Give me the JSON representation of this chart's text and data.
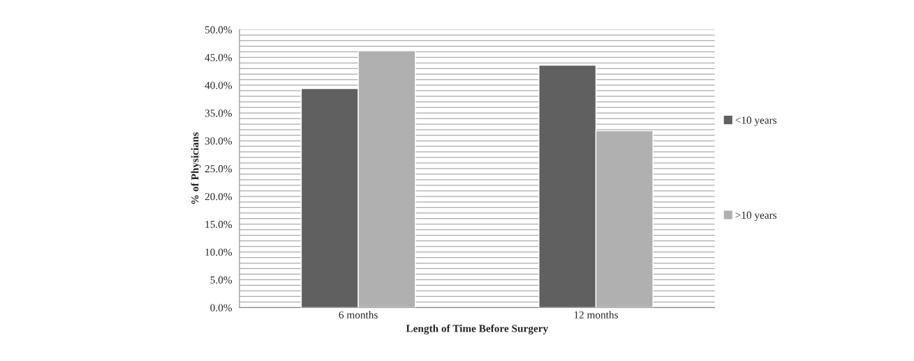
{
  "chart_data": {
    "type": "bar",
    "xlabel": "Length of Time Before Surgery",
    "ylabel": "% of Physicians",
    "categories": [
      "6 months",
      "12 months"
    ],
    "series": [
      {
        "name": "<10 years",
        "color": "#606060",
        "values": [
          39.4,
          43.6
        ]
      },
      {
        "name": ">10 years",
        "color": "#b0b0b0",
        "values": [
          46.2,
          31.8
        ]
      }
    ],
    "ylim": [
      0,
      50
    ],
    "yticks": [
      {
        "value": 0,
        "label": "0.0%"
      },
      {
        "value": 1,
        "label": null
      },
      {
        "value": 2,
        "label": null
      },
      {
        "value": 3,
        "label": null
      },
      {
        "value": 4,
        "label": null
      },
      {
        "value": 5,
        "label": "5.0%"
      },
      {
        "value": 6,
        "label": null
      },
      {
        "value": 7,
        "label": null
      },
      {
        "value": 8,
        "label": null
      },
      {
        "value": 9,
        "label": null
      },
      {
        "value": 10,
        "label": "10.0%"
      },
      {
        "value": 11,
        "label": null
      },
      {
        "value": 12,
        "label": null
      },
      {
        "value": 13,
        "label": null
      },
      {
        "value": 14,
        "label": null
      },
      {
        "value": 15,
        "label": "15.0%"
      },
      {
        "value": 16,
        "label": null
      },
      {
        "value": 17,
        "label": null
      },
      {
        "value": 18,
        "label": null
      },
      {
        "value": 19,
        "label": null
      },
      {
        "value": 20,
        "label": "20.0%"
      },
      {
        "value": 21,
        "label": null
      },
      {
        "value": 22,
        "label": null
      },
      {
        "value": 23,
        "label": null
      },
      {
        "value": 24,
        "label": null
      },
      {
        "value": 25,
        "label": "25.0%"
      },
      {
        "value": 26,
        "label": null
      },
      {
        "value": 27,
        "label": null
      },
      {
        "value": 28,
        "label": null
      },
      {
        "value": 29,
        "label": null
      },
      {
        "value": 30,
        "label": "30.0%"
      },
      {
        "value": 31,
        "label": null
      },
      {
        "value": 32,
        "label": null
      },
      {
        "value": 33,
        "label": null
      },
      {
        "value": 34,
        "label": null
      },
      {
        "value": 35,
        "label": "35.0%"
      },
      {
        "value": 36,
        "label": null
      },
      {
        "value": 37,
        "label": null
      },
      {
        "value": 38,
        "label": null
      },
      {
        "value": 39,
        "label": null
      },
      {
        "value": 40,
        "label": "40.0%"
      },
      {
        "value": 41,
        "label": null
      },
      {
        "value": 42,
        "label": null
      },
      {
        "value": 43,
        "label": null
      },
      {
        "value": 44,
        "label": null
      },
      {
        "value": 45,
        "label": "45.0%"
      },
      {
        "value": 46,
        "label": null
      },
      {
        "value": 47,
        "label": null
      },
      {
        "value": 48,
        "label": null
      },
      {
        "value": 49,
        "label": null
      },
      {
        "value": 50,
        "label": "50.0%"
      }
    ],
    "grid": "y",
    "legend": "right"
  }
}
